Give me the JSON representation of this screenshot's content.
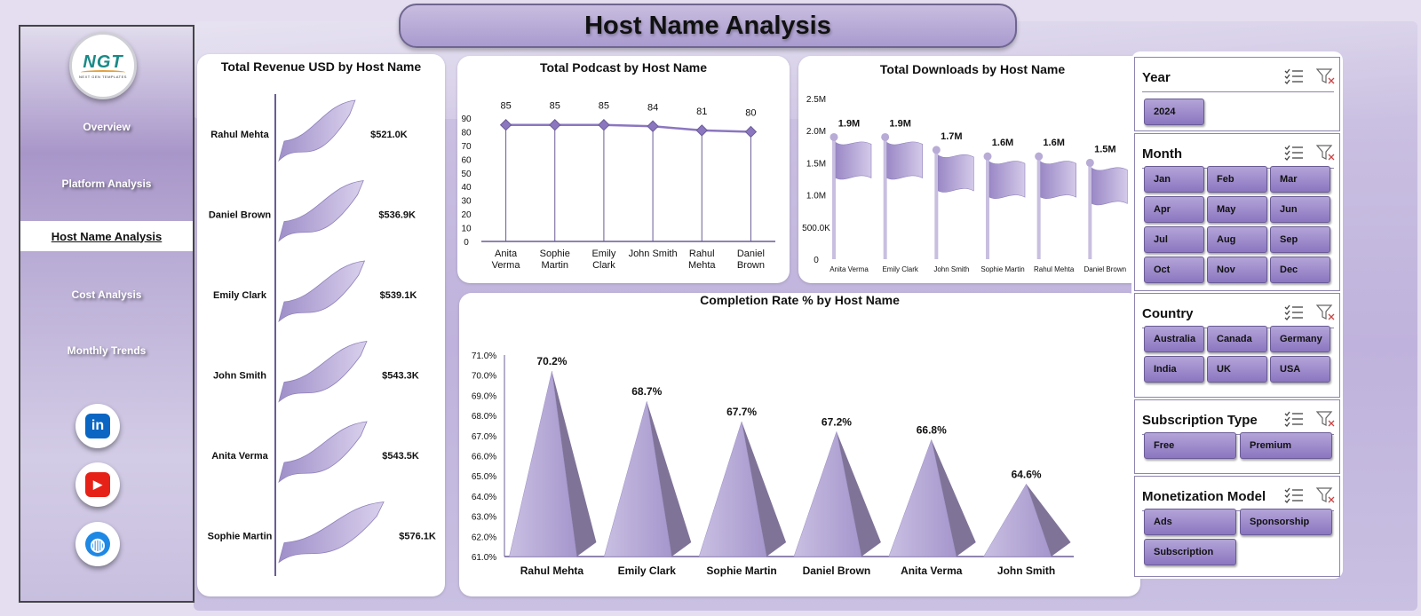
{
  "page": {
    "title": "Host Name Analysis"
  },
  "logo": {
    "text": "NGT",
    "subtext": "NEXT GEN TEMPLATES"
  },
  "nav": [
    {
      "label": "Overview",
      "active": false
    },
    {
      "label": "Platform Analysis",
      "active": false
    },
    {
      "label": "Host Name Analysis",
      "active": true
    },
    {
      "label": "Cost Analysis",
      "active": false
    },
    {
      "label": "Monthly Trends",
      "active": false
    }
  ],
  "social": [
    {
      "icon": "linkedin-icon",
      "glyph": "in",
      "color": "#0a66c2"
    },
    {
      "icon": "youtube-icon",
      "glyph": "▶",
      "color": "#e62117"
    },
    {
      "icon": "globe-icon",
      "glyph": "◍",
      "color": "#1e88e5"
    }
  ],
  "colors": {
    "accent": "#8b76c0",
    "accent_dark": "#6a5c96",
    "bar": "#b8abd6"
  },
  "charts": [
    {
      "id": "revenue",
      "type": "bar",
      "title": "Total Revenue USD by Host Name",
      "categories": [
        "Rahul Mehta",
        "Daniel Brown",
        "Emily Clark",
        "John Smith",
        "Anita Verma",
        "Sophie Martin"
      ],
      "values": [
        521.0,
        536.9,
        539.1,
        543.3,
        543.5,
        576.1
      ],
      "labels": [
        "$521.0K",
        "$536.9K",
        "$539.1K",
        "$543.3K",
        "$543.5K",
        "$576.1K"
      ],
      "unit": "K USD"
    },
    {
      "id": "podcast",
      "type": "line",
      "title": "Total Podcast by Host Name",
      "categories": [
        [
          "Anita",
          "Verma"
        ],
        [
          "Sophie",
          "Martin"
        ],
        [
          "Emily",
          "Clark"
        ],
        [
          "John Smith"
        ],
        [
          "Rahul",
          "Mehta"
        ],
        [
          "Daniel",
          "Brown"
        ]
      ],
      "values": [
        85,
        85,
        85,
        84,
        81,
        80
      ],
      "yticks": [
        "90",
        "80",
        "70",
        "60",
        "50",
        "40",
        "30",
        "20",
        "10",
        "0"
      ],
      "ylim": [
        0,
        90
      ]
    },
    {
      "id": "downloads",
      "type": "bar",
      "title": "Total Downloads by Host Name",
      "categories": [
        "Anita Verma",
        "Emily Clark",
        "John Smith",
        "Sophie Martin",
        "Rahul Mehta",
        "Daniel Brown"
      ],
      "values": [
        1.9,
        1.9,
        1.7,
        1.6,
        1.6,
        1.5
      ],
      "labels": [
        "1.9M",
        "1.9M",
        "1.7M",
        "1.6M",
        "1.6M",
        "1.5M"
      ],
      "yticks": [
        "2.5M",
        "2.0M",
        "1.5M",
        "1.0M",
        "500.0K",
        "0"
      ],
      "ylim": [
        0,
        2.5
      ],
      "unit": "M"
    },
    {
      "id": "completion",
      "type": "bar",
      "title": "Completion Rate % by Host Name",
      "categories": [
        "Rahul Mehta",
        "Emily Clark",
        "Sophie Martin",
        "Daniel Brown",
        "Anita Verma",
        "John Smith"
      ],
      "values": [
        70.2,
        68.7,
        67.7,
        67.2,
        66.8,
        64.6
      ],
      "labels": [
        "70.2%",
        "68.7%",
        "67.7%",
        "67.2%",
        "66.8%",
        "64.6%"
      ],
      "yticks": [
        "71.0%",
        "70.0%",
        "69.0%",
        "68.0%",
        "67.0%",
        "66.0%",
        "65.0%",
        "64.0%",
        "63.0%",
        "62.0%",
        "61.0%"
      ],
      "ylim": [
        61,
        71
      ]
    }
  ],
  "chart_data": [
    {
      "type": "bar",
      "title": "Total Revenue USD by Host Name",
      "categories": [
        "Rahul Mehta",
        "Daniel Brown",
        "Emily Clark",
        "John Smith",
        "Anita Verma",
        "Sophie Martin"
      ],
      "values": [
        521.0,
        536.9,
        539.1,
        543.3,
        543.5,
        576.1
      ]
    },
    {
      "type": "line",
      "title": "Total Podcast by Host Name",
      "categories": [
        "Anita Verma",
        "Sophie Martin",
        "Emily Clark",
        "John Smith",
        "Rahul Mehta",
        "Daniel Brown"
      ],
      "values": [
        85,
        85,
        85,
        84,
        81,
        80
      ],
      "ylim": [
        0,
        90
      ]
    },
    {
      "type": "bar",
      "title": "Total Downloads by Host Name",
      "categories": [
        "Anita Verma",
        "Emily Clark",
        "John Smith",
        "Sophie Martin",
        "Rahul Mehta",
        "Daniel Brown"
      ],
      "values": [
        1.9,
        1.9,
        1.7,
        1.6,
        1.6,
        1.5
      ],
      "ylim": [
        0,
        2.5
      ]
    },
    {
      "type": "bar",
      "title": "Completion Rate % by Host Name",
      "categories": [
        "Rahul Mehta",
        "Emily Clark",
        "Sophie Martin",
        "Daniel Brown",
        "Anita Verma",
        "John Smith"
      ],
      "values": [
        70.2,
        68.7,
        67.7,
        67.2,
        66.8,
        64.6
      ],
      "ylim": [
        61,
        71
      ]
    }
  ],
  "slicers": [
    {
      "title": "Year",
      "items": [
        "2024"
      ]
    },
    {
      "title": "Month",
      "items": [
        "Jan",
        "Feb",
        "Mar",
        "Apr",
        "May",
        "Jun",
        "Jul",
        "Aug",
        "Sep",
        "Oct",
        "Nov",
        "Dec"
      ]
    },
    {
      "title": "Country",
      "items": [
        "Australia",
        "Canada",
        "Germany",
        "India",
        "UK",
        "USA"
      ]
    },
    {
      "title": "Subscription Type",
      "items": [
        "Free",
        "Premium"
      ]
    },
    {
      "title": "Monetization Model",
      "items": [
        "Ads",
        "Sponsorship",
        "Subscription"
      ]
    }
  ]
}
